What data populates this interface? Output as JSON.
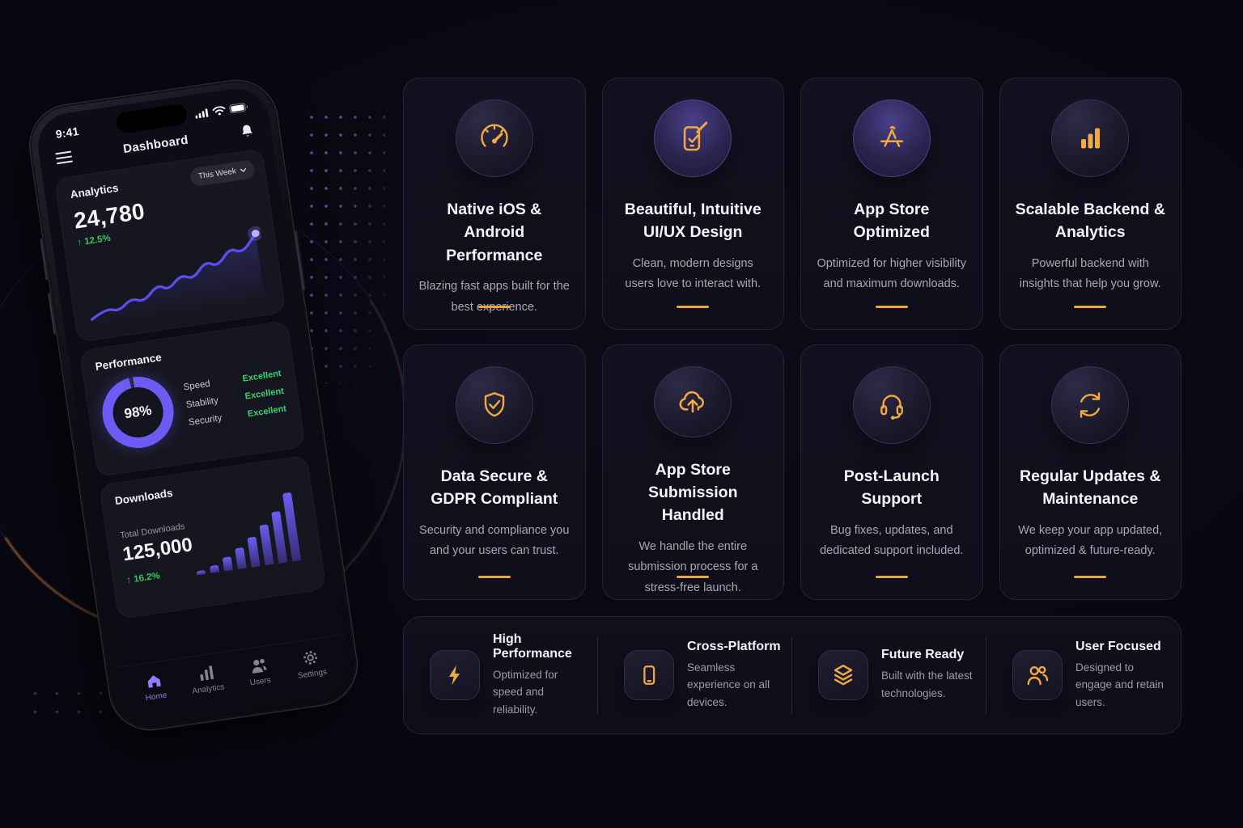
{
  "colors": {
    "accent_amber": "#F2A93F",
    "accent_purple": "#6E5BF6",
    "positive_green": "#35C75A",
    "background": "#080812"
  },
  "phone": {
    "status": {
      "time": "9:41"
    },
    "header": {
      "title": "Dashboard"
    },
    "analytics": {
      "label": "Analytics",
      "period": "This Week",
      "value": "24,780",
      "change": "↑ 12.5%",
      "sparkline": [
        [
          4,
          88
        ],
        [
          22,
          77
        ],
        [
          36,
          83
        ],
        [
          52,
          69
        ],
        [
          66,
          76
        ],
        [
          84,
          57
        ],
        [
          96,
          66
        ],
        [
          112,
          49
        ],
        [
          126,
          57
        ],
        [
          142,
          37
        ],
        [
          156,
          46
        ],
        [
          172,
          25
        ],
        [
          186,
          34
        ],
        [
          204,
          12
        ]
      ]
    },
    "performance": {
      "label": "Performance",
      "percent": "98%",
      "metrics": [
        {
          "label": "Speed",
          "value": "Excellent"
        },
        {
          "label": "Stability",
          "value": "Excellent"
        },
        {
          "label": "Security",
          "value": "Excellent"
        }
      ]
    },
    "downloads": {
      "label": "Downloads",
      "sublabel": "Total Downloads",
      "value": "125,000",
      "change": "↑ 16.2%",
      "bars": [
        5,
        10,
        18,
        28,
        40,
        54,
        70,
        92
      ]
    },
    "nav": [
      {
        "label": "Home",
        "active": true
      },
      {
        "label": "Analytics",
        "active": false
      },
      {
        "label": "Users",
        "active": false
      },
      {
        "label": "Settings",
        "active": false
      }
    ]
  },
  "cards": [
    {
      "icon": "speedometer-icon",
      "title": "Native iOS & Android Performance",
      "desc": "Blazing fast apps built for the best experience."
    },
    {
      "icon": "phone-design-icon",
      "title": "Beautiful, Intuitive UI/UX Design",
      "desc": "Clean, modern designs users love to interact with."
    },
    {
      "icon": "app-store-icon",
      "title": "App Store Optimized",
      "desc": "Optimized for higher visibility and maximum downloads."
    },
    {
      "icon": "bar-chart-icon",
      "title": "Scalable Backend & Analytics",
      "desc": "Powerful backend with insights that help you grow."
    },
    {
      "icon": "shield-check-icon",
      "title": "Data Secure & GDPR Compliant",
      "desc": "Security and compliance you and your users can trust."
    },
    {
      "icon": "cloud-upload-icon",
      "title": "App Store Submission Handled",
      "desc": "We handle the entire submission process for a stress-free launch."
    },
    {
      "icon": "headset-icon",
      "title": "Post-Launch Support",
      "desc": "Bug fixes, updates, and dedicated support included."
    },
    {
      "icon": "sync-icon",
      "title": "Regular Updates & Maintenance",
      "desc": "We keep your app updated, optimized & future-ready."
    }
  ],
  "strip": [
    {
      "icon": "lightning-icon",
      "title": "High Performance",
      "desc": "Optimized for speed and reliability."
    },
    {
      "icon": "smartphone-icon",
      "title": "Cross-Platform",
      "desc": "Seamless experience on all devices."
    },
    {
      "icon": "layers-icon",
      "title": "Future Ready",
      "desc": "Built with the latest technologies."
    },
    {
      "icon": "users-icon",
      "title": "User Focused",
      "desc": "Designed to engage and retain users."
    }
  ]
}
